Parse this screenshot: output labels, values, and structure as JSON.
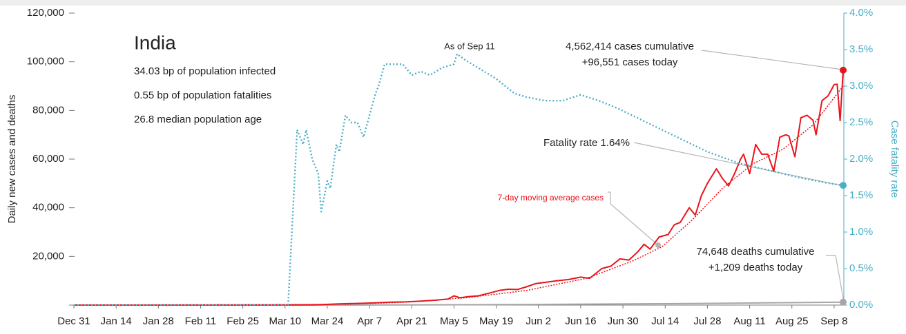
{
  "chart_data": {
    "type": "line",
    "title": "India",
    "info": [
      "34.03 bp of population infected",
      "0.55 bp of population fatalities",
      "26.8 median population age"
    ],
    "annotations": [
      "As of Sep 11",
      "4,562,414 cases cumulative",
      "+96,551 cases today",
      "Fatality rate 1.64%",
      "74,648 deaths cumulative",
      "+1,209 deaths today"
    ],
    "y_label": "Daily new cases and deaths",
    "y2_label": "Case fatality rate",
    "xlim": [
      0,
      255
    ],
    "xticks": [
      {
        "value": 0,
        "label": "Dec 31"
      },
      {
        "value": 14,
        "label": "Jan 14"
      },
      {
        "value": 28,
        "label": "Jan 28"
      },
      {
        "value": 42,
        "label": "Feb 11"
      },
      {
        "value": 56,
        "label": "Feb 25"
      },
      {
        "value": 70,
        "label": "Mar 10"
      },
      {
        "value": 84,
        "label": "Mar 24"
      },
      {
        "value": 98,
        "label": "Apr 7"
      },
      {
        "value": 112,
        "label": "Apr 21"
      },
      {
        "value": 126,
        "label": "May 5"
      },
      {
        "value": 140,
        "label": "May 19"
      },
      {
        "value": 154,
        "label": "Jun 2"
      },
      {
        "value": 168,
        "label": "Jun 16"
      },
      {
        "value": 182,
        "label": "Jun 30"
      },
      {
        "value": 196,
        "label": "Jul 14"
      },
      {
        "value": 210,
        "label": "Jul 28"
      },
      {
        "value": 224,
        "label": "Aug 11"
      },
      {
        "value": 238,
        "label": "Aug 25"
      },
      {
        "value": 252,
        "label": "Sep 8"
      }
    ],
    "ylim": [
      0,
      120000
    ],
    "yticks": [
      {
        "value": 20000,
        "label": "20,000"
      },
      {
        "value": 40000,
        "label": "40,000"
      },
      {
        "value": 60000,
        "label": "60,000"
      },
      {
        "value": 80000,
        "label": "80,000"
      },
      {
        "value": 100000,
        "label": "100,000"
      },
      {
        "value": 120000,
        "label": "120,000"
      }
    ],
    "y2lim": [
      0,
      4
    ],
    "y2ticks": [
      {
        "value": 0,
        "label": "0.0%"
      },
      {
        "value": 0.5,
        "label": "0.5%"
      },
      {
        "value": 1,
        "label": "1.0%"
      },
      {
        "value": 1.5,
        "label": "1.5%"
      },
      {
        "value": 2,
        "label": "2.0%"
      },
      {
        "value": 2.5,
        "label": "2.5%"
      },
      {
        "value": 3,
        "label": "3.0%"
      },
      {
        "value": 3.5,
        "label": "3.5%"
      },
      {
        "value": 4,
        "label": "4.0%"
      }
    ],
    "series": [
      {
        "color": "#e8141b",
        "style": "solid",
        "x": [
          0,
          30,
          60,
          80,
          88,
          95,
          100,
          105,
          110,
          115,
          120,
          124,
          126,
          128,
          131,
          134,
          138,
          141,
          144,
          147,
          150,
          153,
          156,
          160,
          164,
          168,
          171,
          175,
          178,
          181,
          184,
          187,
          189,
          191,
          194,
          197,
          199,
          201,
          203,
          204,
          206,
          208,
          210,
          213,
          215,
          217,
          219,
          221,
          222,
          224,
          226,
          228,
          230,
          232,
          234,
          236,
          237,
          239,
          241,
          243,
          245,
          246,
          248,
          250,
          252,
          253,
          254,
          255
        ],
        "values": [
          0,
          0,
          0,
          100,
          500,
          700,
          900,
          1200,
          1300,
          1600,
          2000,
          2500,
          3800,
          3000,
          3500,
          3800,
          5000,
          6000,
          6500,
          6400,
          7500,
          8800,
          9300,
          10000,
          10500,
          11500,
          11000,
          15000,
          16000,
          19000,
          18500,
          22000,
          25000,
          23000,
          28000,
          29000,
          33000,
          34000,
          38000,
          40000,
          37000,
          45000,
          50000,
          56000,
          52000,
          49000,
          54000,
          60000,
          62000,
          54000,
          66000,
          62000,
          62000,
          55000,
          69000,
          70000,
          69500,
          61000,
          77000,
          78000,
          76000,
          70000,
          84000,
          86000,
          90600,
          90800,
          75800,
          96551
        ]
      },
      {
        "name": "7-day moving average cases",
        "color": "#e8141b",
        "style": "dotted",
        "x": [
          0,
          90,
          110,
          130,
          150,
          170,
          185,
          195,
          205,
          215,
          225,
          235,
          245,
          255
        ],
        "values": [
          0,
          300,
          1200,
          3000,
          6000,
          11000,
          18000,
          24000,
          35000,
          48000,
          58000,
          64000,
          74000,
          90000
        ]
      },
      {
        "color": "#a6a6a6",
        "style": "solid",
        "x": [
          0,
          80,
          120,
          160,
          200,
          230,
          255
        ],
        "values": [
          0,
          0,
          100,
          300,
          600,
          900,
          1209
        ]
      },
      {
        "color": "#4aaec6",
        "style": "dotted",
        "axis": "y2",
        "x": [
          0,
          71,
          74,
          76,
          77,
          79,
          81,
          82,
          84,
          85,
          87,
          88,
          90,
          92,
          94,
          96,
          98,
          100,
          101,
          103,
          106,
          109,
          112,
          115,
          118,
          122,
          126,
          127,
          130,
          134,
          140,
          146,
          150,
          156,
          162,
          168,
          174,
          180,
          190,
          200,
          210,
          220,
          230,
          240,
          250,
          255
        ],
        "values": [
          0,
          0,
          2.4,
          2.2,
          2.4,
          2.0,
          1.8,
          1.28,
          1.7,
          1.6,
          2.2,
          2.1,
          2.6,
          2.5,
          2.5,
          2.3,
          2.6,
          2.9,
          3.0,
          3.3,
          3.3,
          3.3,
          3.15,
          3.2,
          3.15,
          3.25,
          3.3,
          3.44,
          3.35,
          3.25,
          3.1,
          2.9,
          2.85,
          2.8,
          2.8,
          2.88,
          2.8,
          2.7,
          2.5,
          2.3,
          2.1,
          1.95,
          1.85,
          1.75,
          1.67,
          1.64
        ]
      }
    ]
  }
}
